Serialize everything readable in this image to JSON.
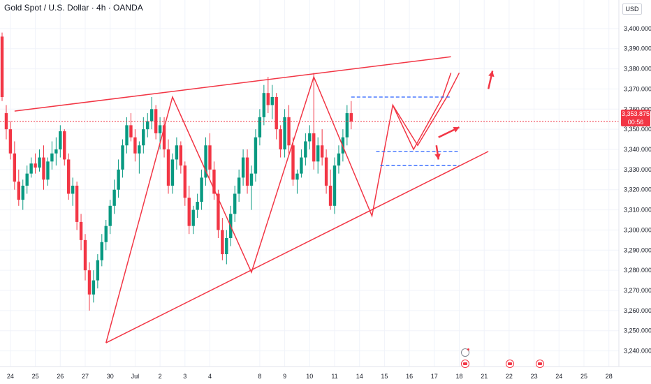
{
  "header": {
    "symbol_title": "Gold Spot / U.S. Dollar · 4h · OANDA",
    "currency": "USD"
  },
  "last_price": {
    "value": "3,353.875",
    "countdown": "00:56"
  },
  "colors": {
    "up": "#089981",
    "down": "#f23645",
    "drawing": "#f23645",
    "dashed": "#2962ff",
    "axis_text": "#131722",
    "grid": "#f0f3fa"
  },
  "chart_data": {
    "type": "candlestick",
    "title": "Gold Spot / U.S. Dollar · 4h · OANDA",
    "ylabel": "USD",
    "ylim": [
      3235,
      3410
    ],
    "y_ticks": [
      "3,240.000",
      "3,250.000",
      "3,260.000",
      "3,270.000",
      "3,280.000",
      "3,290.000",
      "3,300.000",
      "3,310.000",
      "3,320.000",
      "3,330.000",
      "3,340.000",
      "3,350.000",
      "3,360.000",
      "3,370.000",
      "3,380.000",
      "3,390.000",
      "3,400.000"
    ],
    "x_ticks": [
      {
        "label": "24",
        "idx": 2
      },
      {
        "label": "25",
        "idx": 8
      },
      {
        "label": "26",
        "idx": 14
      },
      {
        "label": "27",
        "idx": 20
      },
      {
        "label": "30",
        "idx": 26
      },
      {
        "label": "Jul",
        "idx": 32
      },
      {
        "label": "2",
        "idx": 38
      },
      {
        "label": "3",
        "idx": 44
      },
      {
        "label": "4",
        "idx": 50
      },
      {
        "label": "8",
        "idx": 62
      },
      {
        "label": "9",
        "idx": 68
      },
      {
        "label": "10",
        "idx": 74
      },
      {
        "label": "11",
        "idx": 80
      },
      {
        "label": "14",
        "idx": 86
      },
      {
        "label": "15",
        "idx": 92
      },
      {
        "label": "16",
        "idx": 98
      },
      {
        "label": "17",
        "idx": 104
      },
      {
        "label": "18",
        "idx": 110
      },
      {
        "label": "21",
        "idx": 116
      },
      {
        "label": "22",
        "idx": 122
      },
      {
        "label": "23",
        "idx": 128
      },
      {
        "label": "24",
        "idx": 134
      },
      {
        "label": "25",
        "idx": 140
      },
      {
        "label": "28",
        "idx": 146
      }
    ],
    "last_value": 3353.875,
    "candles": [
      [
        3396,
        3398,
        3364,
        3366
      ],
      [
        3358,
        3362,
        3345,
        3350
      ],
      [
        3350,
        3354,
        3335,
        3338
      ],
      [
        3338,
        3344,
        3320,
        3324
      ],
      [
        3324,
        3330,
        3312,
        3315
      ],
      [
        3315,
        3325,
        3310,
        3322
      ],
      [
        3322,
        3332,
        3318,
        3328
      ],
      [
        3328,
        3336,
        3326,
        3333
      ],
      [
        3333,
        3338,
        3328,
        3331
      ],
      [
        3331,
        3340,
        3329,
        3336
      ],
      [
        3336,
        3342,
        3320,
        3325
      ],
      [
        3325,
        3336,
        3322,
        3334
      ],
      [
        3334,
        3344,
        3330,
        3338
      ],
      [
        3338,
        3346,
        3332,
        3340
      ],
      [
        3340,
        3352,
        3336,
        3349
      ],
      [
        3349,
        3350,
        3332,
        3335
      ],
      [
        3335,
        3338,
        3315,
        3318
      ],
      [
        3318,
        3326,
        3312,
        3322
      ],
      [
        3322,
        3324,
        3300,
        3304
      ],
      [
        3304,
        3308,
        3290,
        3295
      ],
      [
        3295,
        3298,
        3275,
        3280
      ],
      [
        3280,
        3284,
        3260,
        3268
      ],
      [
        3268,
        3280,
        3264,
        3275
      ],
      [
        3275,
        3288,
        3271,
        3285
      ],
      [
        3285,
        3298,
        3282,
        3294
      ],
      [
        3294,
        3305,
        3290,
        3302
      ],
      [
        3302,
        3315,
        3298,
        3312
      ],
      [
        3312,
        3325,
        3308,
        3320
      ],
      [
        3320,
        3335,
        3316,
        3330
      ],
      [
        3330,
        3345,
        3326,
        3342
      ],
      [
        3342,
        3356,
        3338,
        3352
      ],
      [
        3352,
        3358,
        3344,
        3346
      ],
      [
        3346,
        3350,
        3334,
        3338
      ],
      [
        3338,
        3344,
        3328,
        3342
      ],
      [
        3342,
        3356,
        3338,
        3350
      ],
      [
        3350,
        3358,
        3346,
        3354
      ],
      [
        3354,
        3366,
        3350,
        3360
      ],
      [
        3360,
        3362,
        3345,
        3348
      ],
      [
        3348,
        3356,
        3340,
        3352
      ],
      [
        3352,
        3356,
        3336,
        3340
      ],
      [
        3340,
        3345,
        3318,
        3322
      ],
      [
        3322,
        3338,
        3318,
        3335
      ],
      [
        3335,
        3346,
        3330,
        3342
      ],
      [
        3342,
        3344,
        3328,
        3332
      ],
      [
        3332,
        3334,
        3312,
        3316
      ],
      [
        3316,
        3322,
        3298,
        3302
      ],
      [
        3302,
        3312,
        3298,
        3310
      ],
      [
        3310,
        3318,
        3306,
        3314
      ],
      [
        3314,
        3330,
        3310,
        3326
      ],
      [
        3326,
        3346,
        3322,
        3342
      ],
      [
        3342,
        3348,
        3326,
        3330
      ],
      [
        3330,
        3334,
        3315,
        3318
      ],
      [
        3318,
        3320,
        3296,
        3300
      ],
      [
        3300,
        3306,
        3285,
        3288
      ],
      [
        3288,
        3300,
        3283,
        3296
      ],
      [
        3296,
        3312,
        3292,
        3308
      ],
      [
        3308,
        3322,
        3304,
        3318
      ],
      [
        3318,
        3330,
        3314,
        3326
      ],
      [
        3326,
        3340,
        3322,
        3336
      ],
      [
        3336,
        3340,
        3318,
        3322
      ],
      [
        3322,
        3332,
        3310,
        3328
      ],
      [
        3328,
        3350,
        3324,
        3346
      ],
      [
        3346,
        3360,
        3342,
        3356
      ],
      [
        3356,
        3372,
        3352,
        3368
      ],
      [
        3368,
        3376,
        3358,
        3362
      ],
      [
        3362,
        3372,
        3355,
        3366
      ],
      [
        3366,
        3368,
        3345,
        3350
      ],
      [
        3350,
        3352,
        3336,
        3340
      ],
      [
        3340,
        3360,
        3336,
        3356
      ],
      [
        3356,
        3362,
        3338,
        3342
      ],
      [
        3342,
        3346,
        3322,
        3325
      ],
      [
        3325,
        3330,
        3318,
        3328
      ],
      [
        3328,
        3340,
        3326,
        3336
      ],
      [
        3336,
        3348,
        3332,
        3344
      ],
      [
        3344,
        3352,
        3340,
        3348
      ],
      [
        3348,
        3378,
        3330,
        3334
      ],
      [
        3334,
        3346,
        3328,
        3342
      ],
      [
        3342,
        3350,
        3332,
        3336
      ],
      [
        3336,
        3340,
        3318,
        3322
      ],
      [
        3322,
        3330,
        3310,
        3312
      ],
      [
        3312,
        3336,
        3308,
        3332
      ],
      [
        3332,
        3342,
        3328,
        3338
      ],
      [
        3338,
        3350,
        3334,
        3346
      ],
      [
        3346,
        3362,
        3342,
        3358
      ],
      [
        3358,
        3364,
        3350,
        3353.875
      ]
    ],
    "trendlines": [
      {
        "name": "upper-resistance",
        "points": [
          [
            3,
            3359
          ],
          [
            108,
            3386
          ]
        ]
      },
      {
        "name": "lower-support",
        "points": [
          [
            25,
            3244
          ],
          [
            117,
            3339
          ]
        ]
      }
    ],
    "zigzag": [
      [
        25,
        3244
      ],
      [
        41,
        3366
      ],
      [
        60,
        3279
      ],
      [
        75,
        3376
      ],
      [
        89,
        3307
      ],
      [
        94,
        3362
      ],
      [
        99,
        3340
      ],
      [
        106,
        3366
      ],
      [
        108,
        3378
      ]
    ],
    "dashed_levels": [
      {
        "from": 84,
        "to": 108,
        "value": 3366
      },
      {
        "from": 90,
        "to": 110,
        "value": 3339
      },
      {
        "from": 91,
        "to": 110,
        "value": 3332
      }
    ]
  },
  "events": {
    "bolt_label": "⚡"
  }
}
